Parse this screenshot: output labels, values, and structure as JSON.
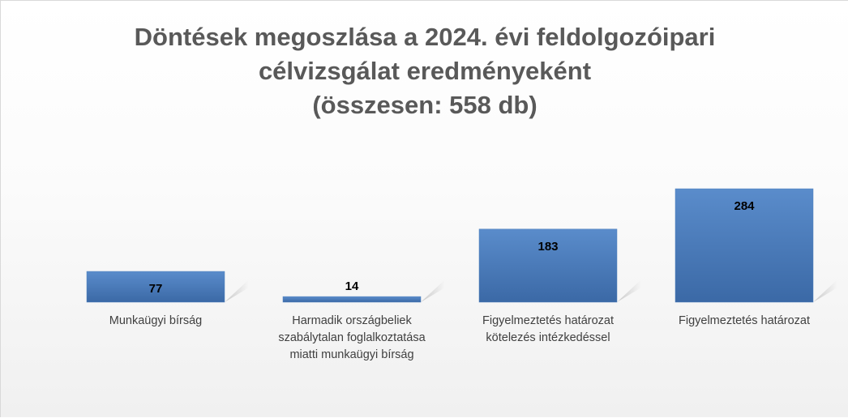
{
  "chart_data": {
    "type": "bar",
    "title": "Döntések megoszlása a 2024. évi feldolgozóipari\ncélvizsgálat eredményeként\n(összesen: 558 db)",
    "categories": [
      "Munkaügyi bírság",
      "Harmadik országbeliek szabálytalan foglalkoztatása miatti munkaügyi bírság",
      "Figyelmeztetés határozat kötelezés intézkedéssel",
      "Figyelmeztetés határozat"
    ],
    "values": [
      77,
      14,
      183,
      284
    ],
    "color": "#4f81bd"
  }
}
